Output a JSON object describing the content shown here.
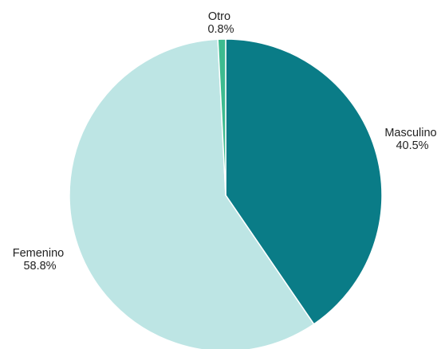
{
  "chart_data": {
    "type": "pie",
    "title": "",
    "start_angle_deg": 0,
    "direction": "clockwise",
    "slices": [
      {
        "name": "Masculino",
        "value": 40.5,
        "value_label": "40.5%",
        "color": "#0a7c87"
      },
      {
        "name": "Femenino",
        "value": 58.8,
        "value_label": "58.8%",
        "color": "#bde5e4"
      },
      {
        "name": "Otro",
        "value": 0.8,
        "value_label": "0.8%",
        "color": "#3dbb8f"
      }
    ],
    "legend": "none",
    "labels_position": "outside"
  }
}
